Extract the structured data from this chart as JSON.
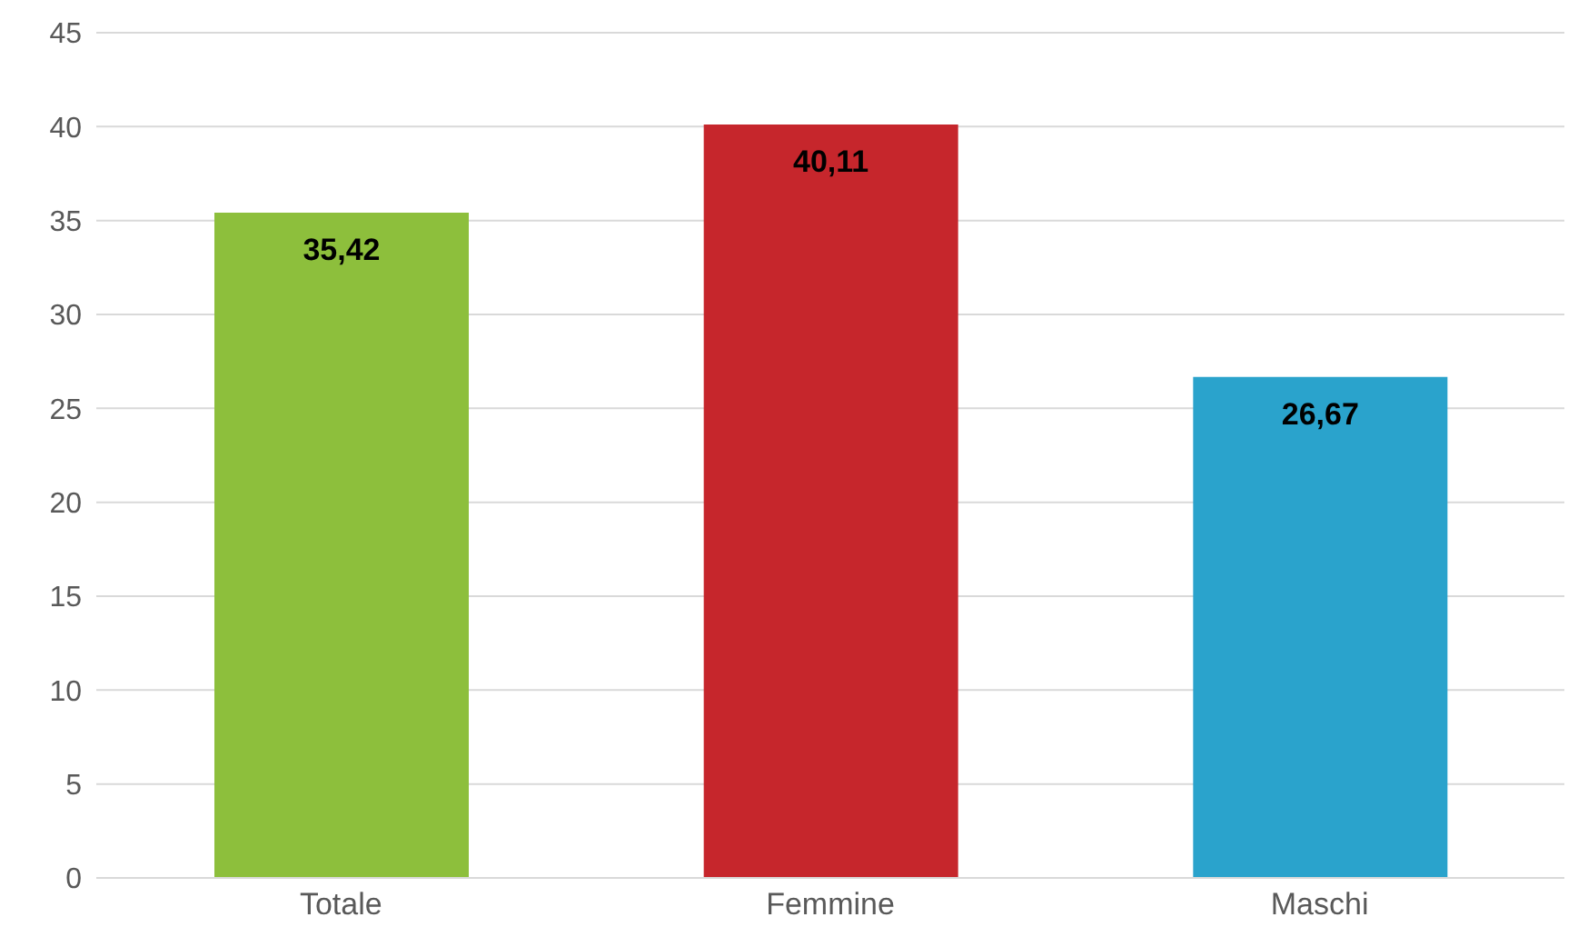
{
  "chart_data": {
    "type": "bar",
    "categories": [
      "Totale",
      "Femmine",
      "Maschi"
    ],
    "values": [
      35.42,
      40.11,
      26.67
    ],
    "colors": [
      "#8dbf3c",
      "#c6262c",
      "#2aa3cc"
    ],
    "value_labels": [
      "35,42",
      "40,11",
      "26,67"
    ],
    "ylim": [
      0,
      45
    ],
    "yticks": [
      0,
      5,
      10,
      15,
      20,
      25,
      30,
      35,
      40,
      45
    ],
    "grid": "y"
  }
}
